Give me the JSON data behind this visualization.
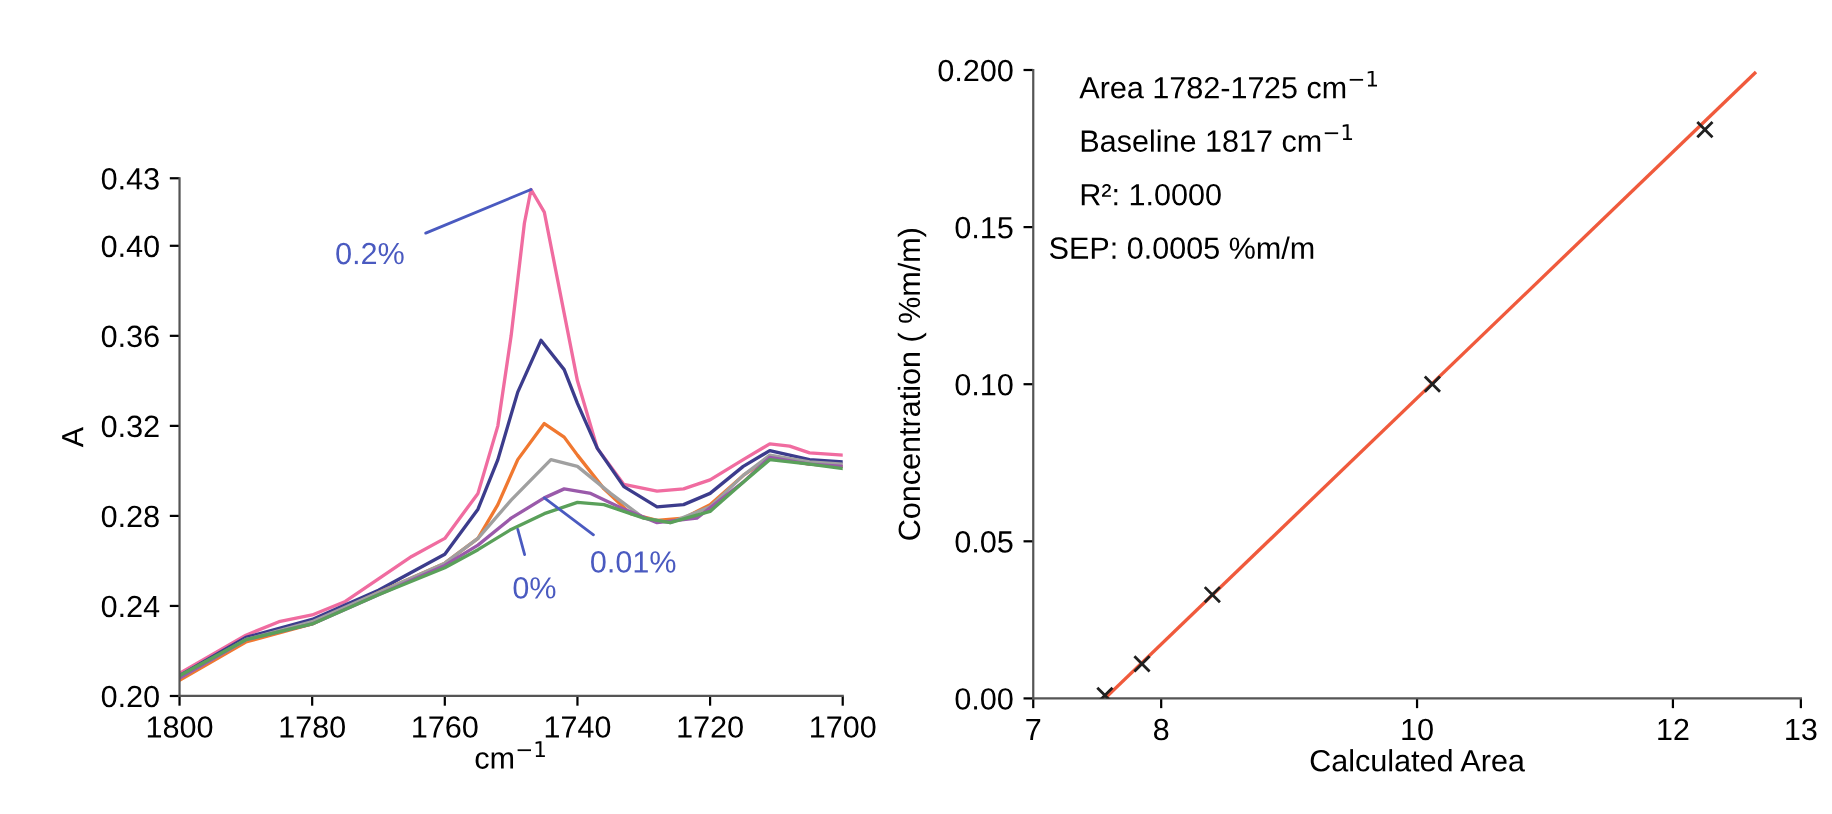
{
  "chart_data": [
    {
      "type": "line",
      "xlabel": "cm$^{−1}$",
      "ylabel": "A",
      "xlim": [
        1800,
        1700
      ],
      "xticks": [
        1800,
        1780,
        1760,
        1740,
        1720,
        1700
      ],
      "ylim": [
        0.2,
        0.43
      ],
      "yticks": [
        {
          "value": 0.2,
          "label": "0.20"
        },
        0.24,
        0.28,
        0.32,
        0.36,
        {
          "value": 0.4,
          "label": "0.40"
        },
        0.43
      ],
      "grid": false,
      "legend": false,
      "series": [
        {
          "color": "#f06ca0",
          "x": [
            1800,
            1790,
            1785,
            1780,
            1775,
            1770,
            1765,
            1760,
            1755,
            1752,
            1750,
            1748,
            1747,
            1745,
            1742,
            1740,
            1737,
            1733,
            1728,
            1724,
            1720,
            1715,
            1711,
            1708,
            1705,
            1700
          ],
          "values": [
            0.21,
            0.227,
            0.233,
            0.236,
            0.242,
            0.252,
            0.262,
            0.27,
            0.29,
            0.32,
            0.36,
            0.41,
            0.425,
            0.415,
            0.37,
            0.34,
            0.31,
            0.294,
            0.291,
            0.292,
            0.296,
            0.305,
            0.312,
            0.311,
            0.308,
            0.307
          ]
        },
        {
          "color": "#3c3c8c",
          "x": [
            1800,
            1790,
            1780,
            1770,
            1760,
            1755,
            1752,
            1749,
            1745.5,
            1742,
            1740,
            1737,
            1733,
            1728,
            1724,
            1720,
            1715,
            1711,
            1705,
            1700
          ],
          "values": [
            0.209,
            0.226,
            0.234,
            0.247,
            0.263,
            0.283,
            0.305,
            0.335,
            0.358,
            0.345,
            0.33,
            0.31,
            0.293,
            0.284,
            0.285,
            0.29,
            0.302,
            0.309,
            0.305,
            0.304
          ]
        },
        {
          "color": "#f07830",
          "x": [
            1800,
            1790,
            1780,
            1770,
            1760,
            1755,
            1752,
            1749,
            1745,
            1742,
            1740,
            1736,
            1732,
            1728,
            1724,
            1720,
            1715,
            1711,
            1705,
            1700
          ],
          "values": [
            0.207,
            0.224,
            0.232,
            0.246,
            0.259,
            0.27,
            0.285,
            0.305,
            0.321,
            0.315,
            0.307,
            0.292,
            0.281,
            0.278,
            0.279,
            0.285,
            0.298,
            0.306,
            0.303,
            0.302
          ]
        },
        {
          "color": "#a0a0a0",
          "x": [
            1800,
            1790,
            1780,
            1770,
            1760,
            1755,
            1750,
            1744,
            1740,
            1735,
            1730,
            1726,
            1720,
            1715,
            1711,
            1705,
            1700
          ],
          "values": [
            0.208,
            0.225,
            0.233,
            0.246,
            0.259,
            0.27,
            0.287,
            0.305,
            0.302,
            0.29,
            0.279,
            0.277,
            0.284,
            0.298,
            0.307,
            0.304,
            0.303
          ]
        },
        {
          "color": "#9a5aaa",
          "x": [
            1800,
            1790,
            1780,
            1770,
            1760,
            1755,
            1750,
            1745,
            1742,
            1738,
            1733,
            1728,
            1722,
            1715,
            1711,
            1705,
            1700
          ],
          "values": [
            0.208,
            0.225,
            0.232,
            0.245,
            0.258,
            0.267,
            0.279,
            0.288,
            0.292,
            0.29,
            0.283,
            0.277,
            0.279,
            0.295,
            0.306,
            0.303,
            0.302
          ]
        },
        {
          "color": "#5aa05a",
          "x": [
            1800,
            1790,
            1780,
            1770,
            1760,
            1755,
            1750,
            1745,
            1740,
            1736,
            1730,
            1726,
            1720,
            1715,
            1711,
            1705,
            1700
          ],
          "values": [
            0.209,
            0.225,
            0.232,
            0.245,
            0.257,
            0.265,
            0.274,
            0.281,
            0.286,
            0.285,
            0.279,
            0.277,
            0.282,
            0.295,
            0.305,
            0.303,
            0.301
          ]
        }
      ],
      "annotations": [
        {
          "text": "0.2%",
          "x": 1747,
          "y": 0.425
        },
        {
          "text": "0.01%",
          "x": 1745,
          "y": 0.288
        },
        {
          "text": "0%",
          "x": 1749,
          "y": 0.274
        }
      ]
    },
    {
      "type": "scatter",
      "xlabel": "Calculated Area",
      "ylabel": "Concentration ( %m/m)",
      "xlim": [
        7,
        13
      ],
      "xticks": [
        7,
        8,
        10,
        12,
        13
      ],
      "ylim": [
        0,
        0.2
      ],
      "yticks": [
        {
          "value": 0,
          "label": "0.00"
        },
        {
          "value": 0.05,
          "label": "0.05"
        },
        {
          "value": 0.1,
          "label": "0.10"
        },
        {
          "value": 0.15,
          "label": "0.15"
        },
        {
          "value": 0.2,
          "label": "0.200"
        }
      ],
      "grid": false,
      "legend": false,
      "series": [
        {
          "type": "line",
          "color": "#f05a3c",
          "x": [
            7.56,
            12.64
          ],
          "values": [
            0.0,
            0.199
          ]
        },
        {
          "type": "scatter",
          "marker": "cross",
          "color": "#202020",
          "x": [
            7.56,
            7.85,
            8.4,
            10.12,
            12.25
          ],
          "values": [
            0.001,
            0.011,
            0.033,
            0.1,
            0.181
          ]
        }
      ],
      "annotations": [
        "Area 1782-1725 cm$^{−1}$",
        "Baseline 1817 cm$^{−1}$",
        "R²: 1.0000",
        "SEP: 0.0005 %m/m"
      ]
    }
  ]
}
